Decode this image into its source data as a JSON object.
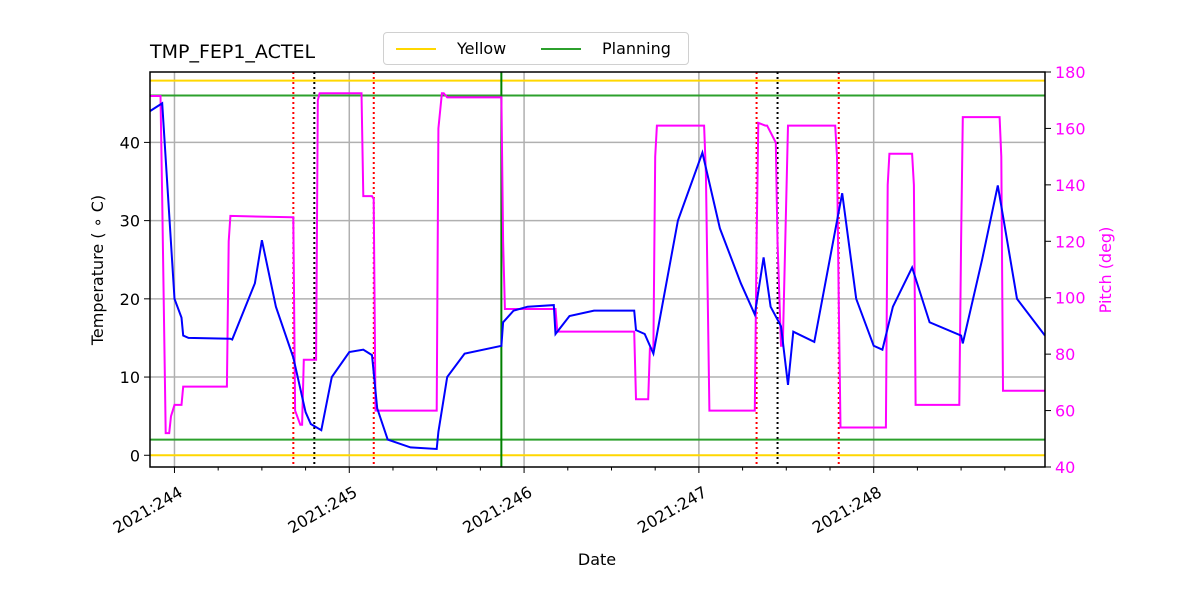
{
  "chart_data": {
    "type": "line",
    "title": "TMP_FEP1_ACTEL",
    "xlabel": "Date",
    "ylabel": "Temperature ($^\\circ$C)",
    "ylabel_display": "Temperature ( ∘ C)",
    "y2label": "Pitch (deg)",
    "x_ticks": [
      "2021:244",
      "2021:245",
      "2021:246",
      "2021:247",
      "2021:248"
    ],
    "x_tick_values": [
      244,
      245,
      246,
      247,
      248
    ],
    "xlim": [
      243.86,
      248.98
    ],
    "y_ticks": [
      0,
      10,
      20,
      30,
      40
    ],
    "ylim": [
      -1.5,
      49.0
    ],
    "y2_ticks": [
      40,
      60,
      80,
      100,
      120,
      140,
      160,
      180
    ],
    "y2lim": [
      40,
      180
    ],
    "grid": true,
    "legend": {
      "position": "top-center",
      "entries": [
        {
          "label": "Yellow",
          "color": "#FFD700"
        },
        {
          "label": "Planning",
          "color": "#2ca02c"
        }
      ]
    },
    "limits": [
      {
        "name": "Yellow high",
        "value": 47.9,
        "color": "#FFD700"
      },
      {
        "name": "Planning high",
        "value": 46.0,
        "color": "#2ca02c"
      },
      {
        "name": "Planning low",
        "value": 2.0,
        "color": "#2ca02c"
      },
      {
        "name": "Yellow low",
        "value": 0.0,
        "color": "#FFD700"
      }
    ],
    "vlines": [
      {
        "x": 244.68,
        "style": "dotted",
        "color": "#ff0000"
      },
      {
        "x": 244.8,
        "style": "dotted",
        "color": "#000000"
      },
      {
        "x": 245.14,
        "style": "dotted",
        "color": "#ff0000"
      },
      {
        "x": 245.87,
        "style": "solid",
        "color": "#008000"
      },
      {
        "x": 247.33,
        "style": "dotted",
        "color": "#ff0000"
      },
      {
        "x": 247.45,
        "style": "dotted",
        "color": "#000000"
      },
      {
        "x": 247.8,
        "style": "dotted",
        "color": "#ff0000"
      }
    ],
    "series": [
      {
        "name": "TMP_FEP1_ACTEL",
        "axis": "left",
        "color": "#0000ff",
        "x": [
          243.86,
          243.93,
          244.0,
          244.04,
          244.05,
          244.08,
          244.32,
          244.33,
          244.46,
          244.5,
          244.58,
          244.68,
          244.75,
          244.78,
          244.84,
          244.9,
          245.0,
          245.08,
          245.13,
          245.16,
          245.22,
          245.35,
          245.5,
          245.51,
          245.56,
          245.66,
          245.87,
          245.88,
          245.94,
          246.02,
          246.17,
          246.18,
          246.26,
          246.4,
          246.63,
          246.64,
          246.69,
          246.74,
          246.88,
          247.02,
          247.12,
          247.24,
          247.32,
          247.37,
          247.41,
          247.47,
          247.51,
          247.54,
          247.66,
          247.82,
          247.9,
          248.0,
          248.05,
          248.11,
          248.22,
          248.32,
          248.5,
          248.51,
          248.62,
          248.71,
          248.82,
          248.98
        ],
        "y": [
          44,
          45,
          20,
          17.6,
          15.3,
          15,
          14.9,
          14.8,
          22,
          27.5,
          19,
          12.5,
          5.5,
          4,
          3.2,
          10,
          13.2,
          13.5,
          12.8,
          6,
          2,
          1,
          0.8,
          3,
          10,
          13,
          14,
          17,
          18.5,
          19,
          19.2,
          15.5,
          17.8,
          18.5,
          18.5,
          16,
          15.5,
          13,
          30,
          38.7,
          29,
          22,
          18,
          25.3,
          19,
          16.5,
          9,
          15.8,
          14.5,
          33.5,
          20,
          14,
          13.5,
          19,
          24,
          17,
          15.3,
          14.3,
          25,
          34.5,
          20,
          15.3
        ]
      },
      {
        "name": "Pitch",
        "axis": "right",
        "color": "#ff00ff",
        "x": [
          243.86,
          243.92,
          243.93,
          243.95,
          243.97,
          243.98,
          244.0,
          244.03,
          244.04,
          244.05,
          244.07,
          244.3,
          244.31,
          244.32,
          244.67,
          244.68,
          244.69,
          244.72,
          244.73,
          244.74,
          244.81,
          244.82,
          244.83,
          245.07,
          245.08,
          245.13,
          245.14,
          245.15,
          245.5,
          245.51,
          245.53,
          245.54,
          245.56,
          245.87,
          245.88,
          245.89,
          246.18,
          246.19,
          246.63,
          246.64,
          246.71,
          246.72,
          246.74,
          246.75,
          246.76,
          247.03,
          247.04,
          247.06,
          247.32,
          247.33,
          247.34,
          247.38,
          247.39,
          247.44,
          247.45,
          247.47,
          247.48,
          247.51,
          247.52,
          247.53,
          247.78,
          247.79,
          247.8,
          247.81,
          248.07,
          248.08,
          248.09,
          248.22,
          248.23,
          248.24,
          248.49,
          248.5,
          248.51,
          248.72,
          248.73,
          248.74,
          248.98
        ],
        "y": [
          171.5,
          171.5,
          135,
          52,
          52,
          58,
          62,
          62,
          62,
          68.5,
          68.5,
          68.5,
          120,
          129,
          128.5,
          128.5,
          60,
          55,
          55,
          78,
          78,
          170,
          172.5,
          172.5,
          136,
          136,
          135,
          60,
          60,
          160,
          172.5,
          172.5,
          171,
          171,
          120,
          96,
          96,
          88,
          88,
          64,
          64,
          82,
          82,
          150,
          161,
          161,
          144,
          60,
          60,
          120,
          162,
          161,
          161,
          155,
          120,
          83,
          83,
          161,
          161,
          161,
          161,
          150,
          100,
          54,
          54,
          140,
          151,
          151,
          140,
          62,
          62,
          120,
          164,
          164,
          150,
          67,
          67
        ]
      }
    ]
  }
}
